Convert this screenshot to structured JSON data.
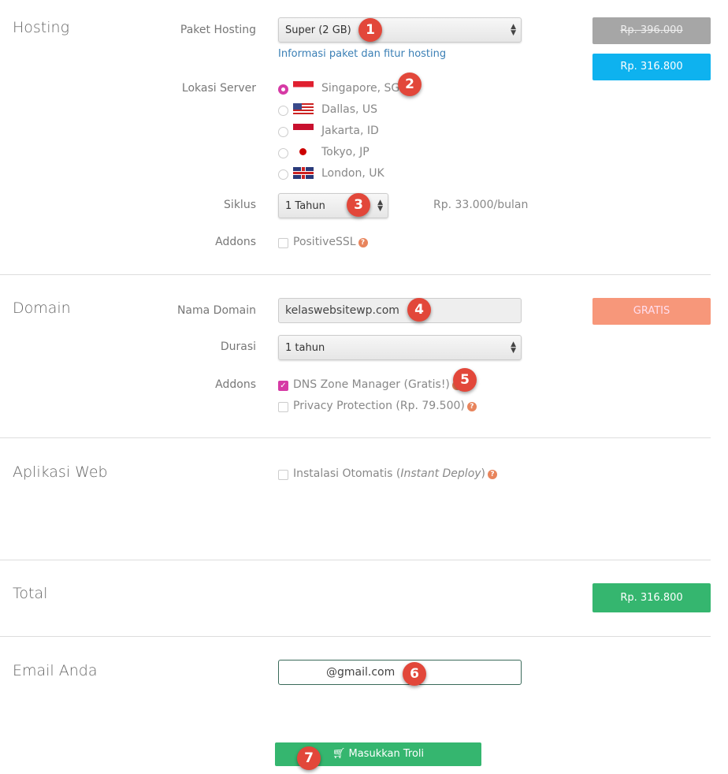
{
  "hosting": {
    "title": "Hosting",
    "package_label": "Paket Hosting",
    "package_value": "Super (2 GB)",
    "info_link": "Informasi paket dan fitur hosting",
    "location_label": "Lokasi Server",
    "locations": [
      {
        "name": "Singapore, SG",
        "selected": true
      },
      {
        "name": "Dallas, US",
        "selected": false
      },
      {
        "name": "Jakarta, ID",
        "selected": false
      },
      {
        "name": "Tokyo, JP",
        "selected": false
      },
      {
        "name": "London, UK",
        "selected": false
      }
    ],
    "cycle_label": "Siklus",
    "cycle_value": "1 Tahun",
    "monthly_price": "Rp. 33.000/bulan",
    "addons_label": "Addons",
    "addon_ssl": "PositiveSSL",
    "price_old": "Rp. 396.000",
    "price_new": "Rp. 316.800"
  },
  "domain": {
    "title": "Domain",
    "name_label": "Nama Domain",
    "name_value": "kelaswebsitewp.com",
    "duration_label": "Durasi",
    "duration_value": "1 tahun",
    "addons_label": "Addons",
    "addon_dns": "DNS Zone Manager (Gratis!)",
    "addon_privacy": "Privacy Protection (Rp. 79.500)",
    "price": "GRATIS"
  },
  "webapp": {
    "title": "Aplikasi Web",
    "install_prefix": "Instalasi Otomatis (",
    "install_em": "Instant Deploy",
    "install_suffix": ")"
  },
  "total": {
    "title": "Total",
    "price": "Rp. 316.800"
  },
  "email": {
    "title": "Email Anda",
    "value": "@gmail.com"
  },
  "cart_button": "Masukkan Troli",
  "markers": [
    "1",
    "2",
    "3",
    "4",
    "5",
    "6",
    "7"
  ],
  "colors": {
    "accent": "#d63aa5",
    "blue": "#0eb2ef",
    "green": "#35b66f",
    "salmon": "#f7977a",
    "gray": "#a6a6a6",
    "marker": "#e2473a"
  }
}
